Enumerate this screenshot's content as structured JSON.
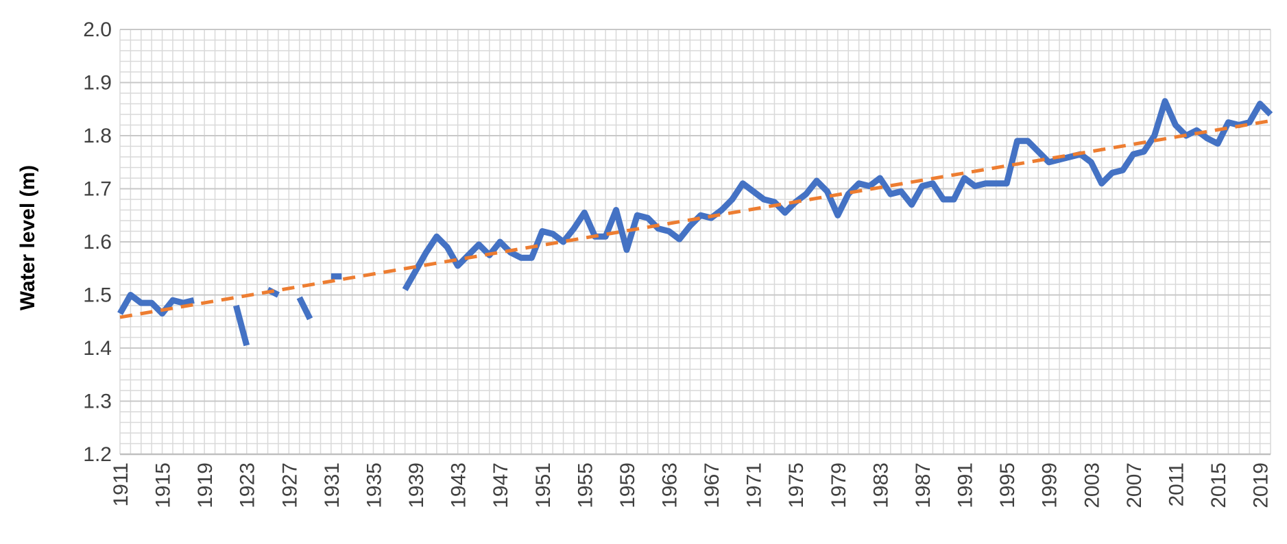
{
  "chart_data": {
    "type": "line",
    "title": "",
    "xlabel": "",
    "ylabel": "Water level (m)",
    "xlim": [
      1911,
      2020
    ],
    "ylim": [
      1.2,
      2.0
    ],
    "y_ticks": [
      "1.2",
      "1.3",
      "1.4",
      "1.5",
      "1.6",
      "1.7",
      "1.8",
      "1.9",
      "2.0"
    ],
    "x_tick_labels": [
      "1911",
      "1915",
      "1919",
      "1923",
      "1927",
      "1931",
      "1935",
      "1939",
      "1943",
      "1947",
      "1951",
      "1955",
      "1959",
      "1963",
      "1967",
      "1971",
      "1975",
      "1979",
      "1983",
      "1987",
      "1991",
      "1995",
      "1999",
      "2003",
      "2007",
      "2011",
      "2015",
      "2019"
    ],
    "grid": true,
    "legend": "none",
    "colors": {
      "series": "#4472C4",
      "trend": "#ED7D31",
      "grid": "#D9D9D9",
      "axis": "#BFBFBF"
    },
    "series": [
      {
        "style": "solid",
        "x": [
          1911,
          1912,
          1913,
          1914,
          1915,
          1916,
          1917,
          1918,
          1919,
          1920,
          1921,
          1922,
          1923,
          1924,
          1925,
          1926,
          1927,
          1928,
          1929,
          1930,
          1931,
          1932,
          1933,
          1934,
          1935,
          1936,
          1937,
          1938,
          1939,
          1940,
          1941,
          1942,
          1943,
          1944,
          1945,
          1946,
          1947,
          1948,
          1949,
          1950,
          1951,
          1952,
          1953,
          1954,
          1955,
          1956,
          1957,
          1958,
          1959,
          1960,
          1961,
          1962,
          1963,
          1964,
          1965,
          1966,
          1967,
          1968,
          1969,
          1970,
          1971,
          1972,
          1973,
          1974,
          1975,
          1976,
          1977,
          1978,
          1979,
          1980,
          1981,
          1982,
          1983,
          1984,
          1985,
          1986,
          1987,
          1988,
          1989,
          1990,
          1991,
          1992,
          1993,
          1994,
          1995,
          1996,
          1997,
          1998,
          1999,
          2000,
          2001,
          2002,
          2003,
          2004,
          2005,
          2006,
          2007,
          2008,
          2009,
          2010,
          2011,
          2012,
          2013,
          2014,
          2015,
          2016,
          2017,
          2018,
          2019,
          2020
        ],
        "values": [
          1.465,
          1.5,
          1.485,
          1.485,
          1.465,
          1.49,
          1.485,
          1.49,
          null,
          null,
          null,
          1.48,
          1.405,
          null,
          1.51,
          1.5,
          null,
          1.495,
          1.455,
          null,
          1.535,
          1.535,
          null,
          null,
          null,
          null,
          null,
          1.51,
          1.545,
          1.58,
          1.61,
          1.59,
          1.555,
          1.575,
          1.595,
          1.575,
          1.6,
          1.58,
          1.57,
          1.57,
          1.62,
          1.615,
          1.6,
          1.625,
          1.655,
          1.61,
          1.61,
          1.66,
          1.585,
          1.65,
          1.645,
          1.625,
          1.62,
          1.605,
          1.63,
          1.65,
          1.645,
          1.66,
          1.68,
          1.71,
          1.695,
          1.68,
          1.675,
          1.655,
          1.675,
          1.69,
          1.715,
          1.695,
          1.65,
          1.69,
          1.71,
          1.705,
          1.72,
          1.69,
          1.695,
          1.67,
          1.705,
          1.71,
          1.68,
          1.68,
          1.72,
          1.705,
          1.71,
          1.71,
          1.71,
          1.79,
          1.79,
          1.77,
          1.75,
          1.755,
          1.76,
          1.765,
          1.75,
          1.71,
          1.73,
          1.735,
          1.765,
          1.77,
          1.8,
          1.865,
          1.82,
          1.8,
          1.81,
          1.795,
          1.785,
          1.825,
          1.82,
          1.825,
          1.86,
          1.84
        ]
      },
      {
        "style": "dashed",
        "x": [
          1911,
          2020
        ],
        "values": [
          1.458,
          1.828
        ]
      }
    ]
  }
}
